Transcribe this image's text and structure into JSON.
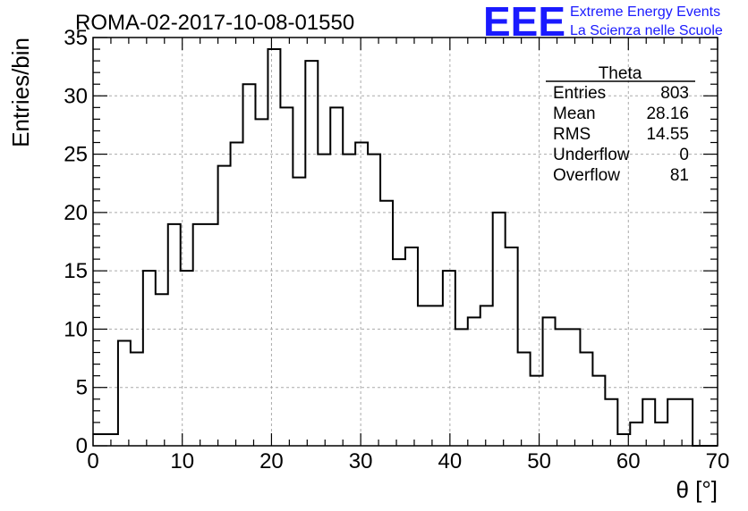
{
  "title": "ROMA-02-2017-10-08-01550",
  "logo": {
    "mark": "EEE",
    "line1": "Extreme Energy Events",
    "line2": "La Scienza nelle Scuole",
    "color": "#1a1aff"
  },
  "stats": {
    "name": "Theta",
    "rows": [
      {
        "label": "Entries",
        "value": "803"
      },
      {
        "label": "Mean",
        "value": "28.16"
      },
      {
        "label": "RMS",
        "value": "14.55"
      },
      {
        "label": "Underflow",
        "value": "0"
      },
      {
        "label": "Overflow",
        "value": "81"
      }
    ]
  },
  "chart_data": {
    "type": "bar",
    "style": "step-histogram",
    "title": "ROMA-02-2017-10-08-01550",
    "xlabel": "θ [°]",
    "ylabel": "Entries/bin",
    "xlim": [
      0,
      70
    ],
    "ylim": [
      0,
      35
    ],
    "bin_width": 1.4,
    "bin_edges_start": 0,
    "values": [
      1,
      1,
      9,
      8,
      15,
      13,
      19,
      15,
      19,
      19,
      24,
      26,
      31,
      28,
      34,
      29,
      23,
      33,
      25,
      29,
      25,
      26,
      25,
      21,
      16,
      17,
      12,
      12,
      15,
      10,
      11,
      12,
      20,
      17,
      8,
      6,
      11,
      10,
      10,
      8,
      6,
      4,
      1,
      2,
      4,
      2,
      4,
      4,
      0,
      0
    ],
    "x_ticks": [
      "0",
      "10",
      "20",
      "30",
      "40",
      "50",
      "60",
      "70"
    ],
    "y_ticks": [
      "0",
      "5",
      "10",
      "15",
      "20",
      "25",
      "30",
      "35"
    ],
    "x_tick_values": [
      0,
      10,
      20,
      30,
      40,
      50,
      60,
      70
    ],
    "y_tick_values": [
      0,
      5,
      10,
      15,
      20,
      25,
      30,
      35
    ],
    "grid": true,
    "line_color": "#000000"
  }
}
